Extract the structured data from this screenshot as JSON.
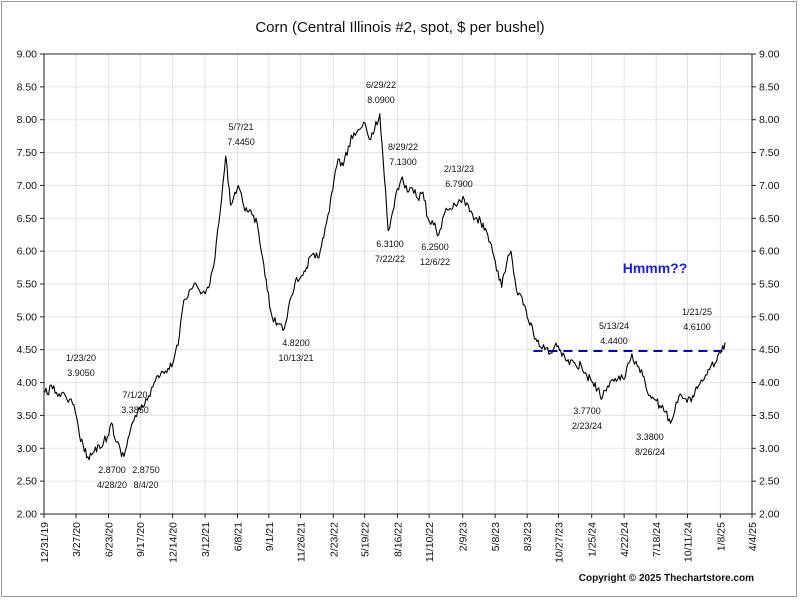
{
  "chart_data": {
    "type": "line",
    "title": "Corn (Central Illinois #2, spot, $ per bushel)",
    "xlabel": "",
    "ylabel": "",
    "ylim": [
      2.0,
      9.0
    ],
    "xlim": [
      "2019-12-31",
      "2025-04-04"
    ],
    "yticks": [
      "2.00",
      "2.50",
      "3.00",
      "3.50",
      "4.00",
      "4.50",
      "5.00",
      "5.50",
      "6.00",
      "6.50",
      "7.00",
      "7.50",
      "8.00",
      "8.50",
      "9.00"
    ],
    "xticks": [
      {
        "label": "12/31/19",
        "date": "2019-12-31"
      },
      {
        "label": "3/27/20",
        "date": "2020-03-27"
      },
      {
        "label": "6/23/20",
        "date": "2020-06-23"
      },
      {
        "label": "9/17/20",
        "date": "2020-09-17"
      },
      {
        "label": "12/14/20",
        "date": "2020-12-14"
      },
      {
        "label": "3/12/21",
        "date": "2021-03-12"
      },
      {
        "label": "6/8/21",
        "date": "2021-06-08"
      },
      {
        "label": "9/1/21",
        "date": "2021-09-01"
      },
      {
        "label": "11/26/21",
        "date": "2021-11-26"
      },
      {
        "label": "2/23/22",
        "date": "2022-02-23"
      },
      {
        "label": "5/19/22",
        "date": "2022-05-19"
      },
      {
        "label": "8/16/22",
        "date": "2022-08-16"
      },
      {
        "label": "11/10/22",
        "date": "2022-11-10"
      },
      {
        "label": "2/9/23",
        "date": "2023-02-09"
      },
      {
        "label": "5/8/23",
        "date": "2023-05-08"
      },
      {
        "label": "8/3/23",
        "date": "2023-08-03"
      },
      {
        "label": "10/27/23",
        "date": "2023-10-27"
      },
      {
        "label": "1/25/24",
        "date": "2024-01-25"
      },
      {
        "label": "4/22/24",
        "date": "2024-04-22"
      },
      {
        "label": "7/18/24",
        "date": "2024-07-18"
      },
      {
        "label": "10/11/24",
        "date": "2024-10-11"
      },
      {
        "label": "1/8/25",
        "date": "2025-01-08"
      },
      {
        "label": "4/4/25",
        "date": "2025-04-04"
      }
    ],
    "grid": true,
    "series": [
      {
        "color": "#000000",
        "points": [
          [
            "2020-01-02",
            3.85
          ],
          [
            "2020-01-23",
            3.905
          ],
          [
            "2020-02-10",
            3.83
          ],
          [
            "2020-02-27",
            3.8
          ],
          [
            "2020-03-10",
            3.75
          ],
          [
            "2020-03-25",
            3.55
          ],
          [
            "2020-04-05",
            3.2
          ],
          [
            "2020-04-15",
            3.05
          ],
          [
            "2020-04-28",
            2.87
          ],
          [
            "2020-05-12",
            2.93
          ],
          [
            "2020-05-28",
            3.05
          ],
          [
            "2020-06-10",
            3.1
          ],
          [
            "2020-06-20",
            3.18
          ],
          [
            "2020-07-01",
            3.385
          ],
          [
            "2020-07-10",
            3.15
          ],
          [
            "2020-07-25",
            2.98
          ],
          [
            "2020-08-04",
            2.875
          ],
          [
            "2020-08-15",
            3.15
          ],
          [
            "2020-08-28",
            3.4
          ],
          [
            "2020-09-10",
            3.55
          ],
          [
            "2020-09-25",
            3.62
          ],
          [
            "2020-10-10",
            3.8
          ],
          [
            "2020-10-25",
            4.0
          ],
          [
            "2020-11-10",
            4.1
          ],
          [
            "2020-11-28",
            4.15
          ],
          [
            "2020-12-15",
            4.3
          ],
          [
            "2021-01-01",
            4.7
          ],
          [
            "2021-01-13",
            5.25
          ],
          [
            "2021-01-28",
            5.4
          ],
          [
            "2021-02-10",
            5.5
          ],
          [
            "2021-02-25",
            5.4
          ],
          [
            "2021-03-12",
            5.35
          ],
          [
            "2021-03-25",
            5.5
          ],
          [
            "2021-04-08",
            5.9
          ],
          [
            "2021-04-22",
            6.6
          ],
          [
            "2021-05-07",
            7.445
          ],
          [
            "2021-05-20",
            6.7
          ],
          [
            "2021-06-01",
            6.9
          ],
          [
            "2021-06-10",
            7.0
          ],
          [
            "2021-06-22",
            6.75
          ],
          [
            "2021-07-05",
            6.6
          ],
          [
            "2021-07-18",
            6.55
          ],
          [
            "2021-08-01",
            6.4
          ],
          [
            "2021-08-15",
            5.9
          ],
          [
            "2021-08-28",
            5.4
          ],
          [
            "2021-09-10",
            5.0
          ],
          [
            "2021-09-25",
            4.9
          ],
          [
            "2021-10-13",
            4.82
          ],
          [
            "2021-10-28",
            5.25
          ],
          [
            "2021-11-12",
            5.55
          ],
          [
            "2021-11-26",
            5.6
          ],
          [
            "2021-12-12",
            5.75
          ],
          [
            "2021-12-28",
            5.95
          ],
          [
            "2022-01-12",
            5.9
          ],
          [
            "2022-01-28",
            6.2
          ],
          [
            "2022-02-12",
            6.6
          ],
          [
            "2022-02-25",
            7.1
          ],
          [
            "2022-03-08",
            7.4
          ],
          [
            "2022-03-22",
            7.3
          ],
          [
            "2022-04-05",
            7.6
          ],
          [
            "2022-04-20",
            7.8
          ],
          [
            "2022-05-05",
            7.85
          ],
          [
            "2022-05-20",
            7.95
          ],
          [
            "2022-06-01",
            7.7
          ],
          [
            "2022-06-15",
            7.85
          ],
          [
            "2022-06-29",
            8.09
          ],
          [
            "2022-07-08",
            7.4
          ],
          [
            "2022-07-22",
            6.31
          ],
          [
            "2022-08-03",
            6.6
          ],
          [
            "2022-08-16",
            6.95
          ],
          [
            "2022-08-29",
            7.13
          ],
          [
            "2022-09-12",
            6.9
          ],
          [
            "2022-09-26",
            6.95
          ],
          [
            "2022-10-10",
            6.8
          ],
          [
            "2022-10-24",
            6.9
          ],
          [
            "2022-11-07",
            6.5
          ],
          [
            "2022-11-22",
            6.4
          ],
          [
            "2022-12-06",
            6.25
          ],
          [
            "2022-12-20",
            6.55
          ],
          [
            "2023-01-05",
            6.65
          ],
          [
            "2023-01-20",
            6.7
          ],
          [
            "2023-02-13",
            6.79
          ],
          [
            "2023-02-28",
            6.6
          ],
          [
            "2023-03-15",
            6.5
          ],
          [
            "2023-03-30",
            6.45
          ],
          [
            "2023-04-15",
            6.3
          ],
          [
            "2023-04-28",
            6.1
          ],
          [
            "2023-05-12",
            5.7
          ],
          [
            "2023-05-26",
            5.45
          ],
          [
            "2023-06-08",
            5.8
          ],
          [
            "2023-06-20",
            6.0
          ],
          [
            "2023-07-05",
            5.4
          ],
          [
            "2023-07-20",
            5.3
          ],
          [
            "2023-08-03",
            5.0
          ],
          [
            "2023-08-20",
            4.75
          ],
          [
            "2023-09-05",
            4.55
          ],
          [
            "2023-09-20",
            4.5
          ],
          [
            "2023-10-05",
            4.45
          ],
          [
            "2023-10-20",
            4.6
          ],
          [
            "2023-11-05",
            4.4
          ],
          [
            "2023-11-22",
            4.35
          ],
          [
            "2023-12-10",
            4.3
          ],
          [
            "2023-12-28",
            4.25
          ],
          [
            "2024-01-12",
            4.1
          ],
          [
            "2024-01-28",
            4.0
          ],
          [
            "2024-02-10",
            3.9
          ],
          [
            "2024-02-23",
            3.77
          ],
          [
            "2024-03-08",
            3.95
          ],
          [
            "2024-03-22",
            4.05
          ],
          [
            "2024-04-08",
            4.1
          ],
          [
            "2024-04-22",
            4.05
          ],
          [
            "2024-05-13",
            4.44
          ],
          [
            "2024-05-28",
            4.25
          ],
          [
            "2024-06-12",
            4.1
          ],
          [
            "2024-06-28",
            3.8
          ],
          [
            "2024-07-12",
            3.75
          ],
          [
            "2024-07-28",
            3.65
          ],
          [
            "2024-08-12",
            3.55
          ],
          [
            "2024-08-26",
            3.38
          ],
          [
            "2024-09-10",
            3.7
          ],
          [
            "2024-09-25",
            3.8
          ],
          [
            "2024-10-10",
            3.7
          ],
          [
            "2024-10-25",
            3.8
          ],
          [
            "2024-11-10",
            3.95
          ],
          [
            "2024-11-25",
            4.05
          ],
          [
            "2024-12-10",
            4.2
          ],
          [
            "2024-12-25",
            4.3
          ],
          [
            "2025-01-08",
            4.45
          ],
          [
            "2025-01-21",
            4.61
          ]
        ]
      }
    ],
    "reference_line": {
      "y": 4.48,
      "x_start": "2023-08-20",
      "x_end": "2025-01-21",
      "color": "#0000cc",
      "style": "dashed"
    },
    "annotations": [
      {
        "id": "a1",
        "date_text": "1/23/20",
        "value_text": "3.9050"
      },
      {
        "id": "a2",
        "date_text": "4/28/20",
        "value_text": "2.8700"
      },
      {
        "id": "a3",
        "date_text": "7/1/20",
        "value_text": "3.3850"
      },
      {
        "id": "a4",
        "date_text": "8/4/20",
        "value_text": "2.8750"
      },
      {
        "id": "a5",
        "date_text": "5/7/21",
        "value_text": "7.4450"
      },
      {
        "id": "a6",
        "date_text": "10/13/21",
        "value_text": "4.8200"
      },
      {
        "id": "a7",
        "date_text": "6/29/22",
        "value_text": "8.0900"
      },
      {
        "id": "a8",
        "date_text": "8/29/22",
        "value_text": "7.1300"
      },
      {
        "id": "a9",
        "date_text": "7/22/22",
        "value_text": "6.3100"
      },
      {
        "id": "a10",
        "date_text": "12/6/22",
        "value_text": "6.2500"
      },
      {
        "id": "a11",
        "date_text": "2/13/23",
        "value_text": "6.7900"
      },
      {
        "id": "a12",
        "date_text": "2/23/24",
        "value_text": "3.7700"
      },
      {
        "id": "a13",
        "date_text": "5/13/24",
        "value_text": "4.4400"
      },
      {
        "id": "a14",
        "date_text": "8/26/24",
        "value_text": "3.3800"
      },
      {
        "id": "a15",
        "date_text": "1/21/25",
        "value_text": "4.6100"
      }
    ],
    "callout": {
      "text": "Hmmm??",
      "color": "#1a1aff"
    }
  },
  "copyright": "Copyright © 2025 Thechartstore.com"
}
